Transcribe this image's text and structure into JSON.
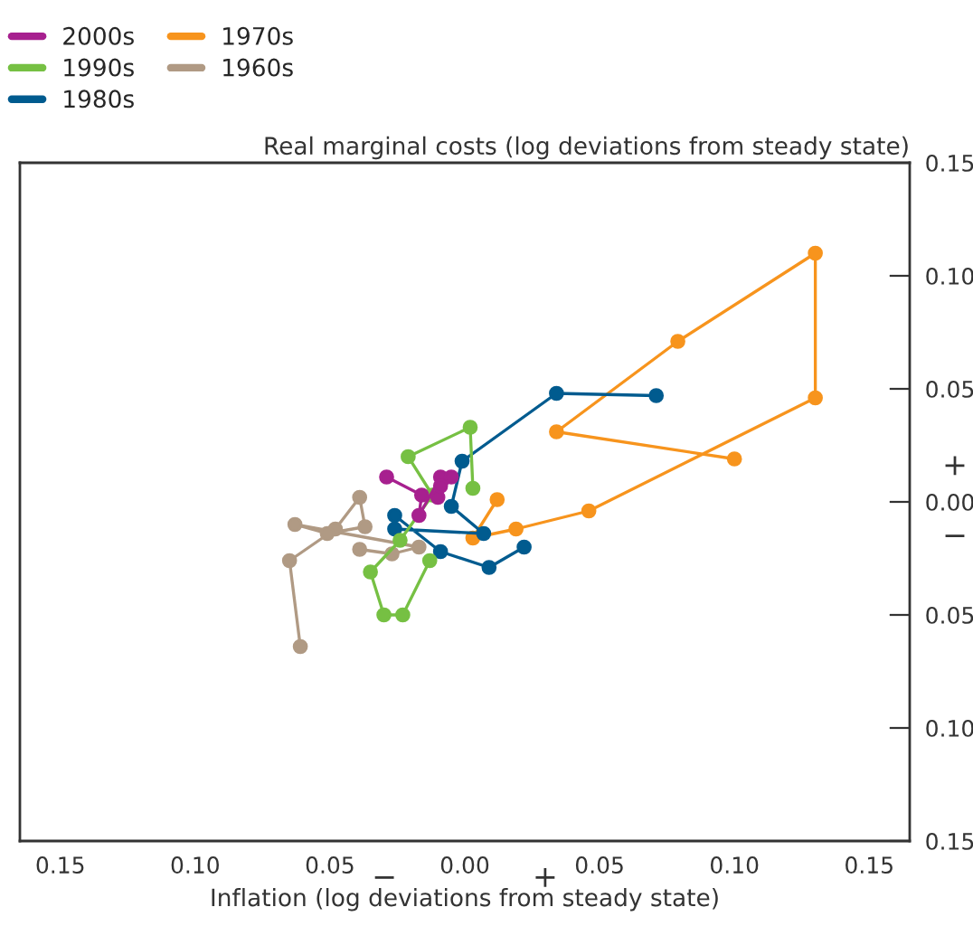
{
  "chart_data": {
    "type": "line",
    "xlabel": "Inflation (log deviations from steady state)",
    "ylabel": "Real marginal costs (log deviations from steady state)",
    "marker": "circle",
    "legend": "top left",
    "grid": false,
    "xlim": [
      -0.165,
      0.165
    ],
    "xticks": [
      {
        "value": -0.15,
        "label": "0.15"
      },
      {
        "value": -0.1,
        "label": "0.10"
      },
      {
        "value": -0.05,
        "label": "0.05"
      },
      {
        "value": 0,
        "label": "0.00"
      },
      {
        "value": 0.05,
        "label": "0.05"
      },
      {
        "value": 0.1,
        "label": "0.10"
      },
      {
        "value": 0.15,
        "label": "0.15"
      }
    ],
    "ylim": [
      -0.15,
      0.15
    ],
    "yticks": [
      {
        "value": -0.15,
        "label": "0.15"
      },
      {
        "value": -0.1,
        "label": "0.10"
      },
      {
        "value": -0.05,
        "label": "0.05"
      },
      {
        "value": 0,
        "label": "0.00"
      },
      {
        "value": 0.05,
        "label": "0.05"
      },
      {
        "value": 0.1,
        "label": "0.10"
      },
      {
        "value": 0.15,
        "label": "0.15"
      }
    ],
    "annotations": [
      "−",
      "+",
      "+",
      "−"
    ],
    "series": [
      {
        "name": "2000s",
        "color": "#a7208f",
        "x": [
          -0.029,
          -0.016,
          -0.017,
          -0.009,
          -0.005,
          -0.01,
          -0.009
        ],
        "values": [
          0.011,
          0.003,
          -0.006,
          0.011,
          0.011,
          0.002,
          0.007
        ]
      },
      {
        "name": "1990s",
        "color": "#76c043",
        "x": [
          0.003,
          0.002,
          -0.021,
          -0.012,
          -0.024,
          -0.035,
          -0.03,
          -0.023,
          -0.013
        ],
        "values": [
          0.006,
          0.033,
          0.02,
          0.003,
          -0.017,
          -0.031,
          -0.05,
          -0.05,
          -0.026
        ]
      },
      {
        "name": "1980s",
        "color": "#005b8f",
        "x": [
          0.071,
          0.034,
          -0.001,
          -0.005,
          0.007,
          -0.026,
          -0.026,
          -0.009,
          0.009,
          0.022
        ],
        "values": [
          0.047,
          0.048,
          0.018,
          -0.002,
          -0.014,
          -0.012,
          -0.006,
          -0.022,
          -0.029,
          -0.02
        ]
      },
      {
        "name": "1970s",
        "color": "#f7941d",
        "x": [
          0.012,
          0.003,
          0.019,
          0.046,
          0.13,
          0.13,
          0.079,
          0.034,
          0.1
        ],
        "values": [
          0.001,
          -0.016,
          -0.012,
          -0.004,
          0.046,
          0.11,
          0.071,
          0.031,
          0.019
        ]
      },
      {
        "name": "1960s",
        "color": "#b09a84",
        "x": [
          -0.061,
          -0.065,
          -0.048,
          -0.039,
          -0.037,
          -0.051,
          -0.063,
          -0.017,
          -0.027,
          -0.039
        ],
        "values": [
          -0.064,
          -0.026,
          -0.012,
          0.002,
          -0.011,
          -0.014,
          -0.01,
          -0.02,
          -0.023,
          -0.021
        ]
      }
    ]
  }
}
